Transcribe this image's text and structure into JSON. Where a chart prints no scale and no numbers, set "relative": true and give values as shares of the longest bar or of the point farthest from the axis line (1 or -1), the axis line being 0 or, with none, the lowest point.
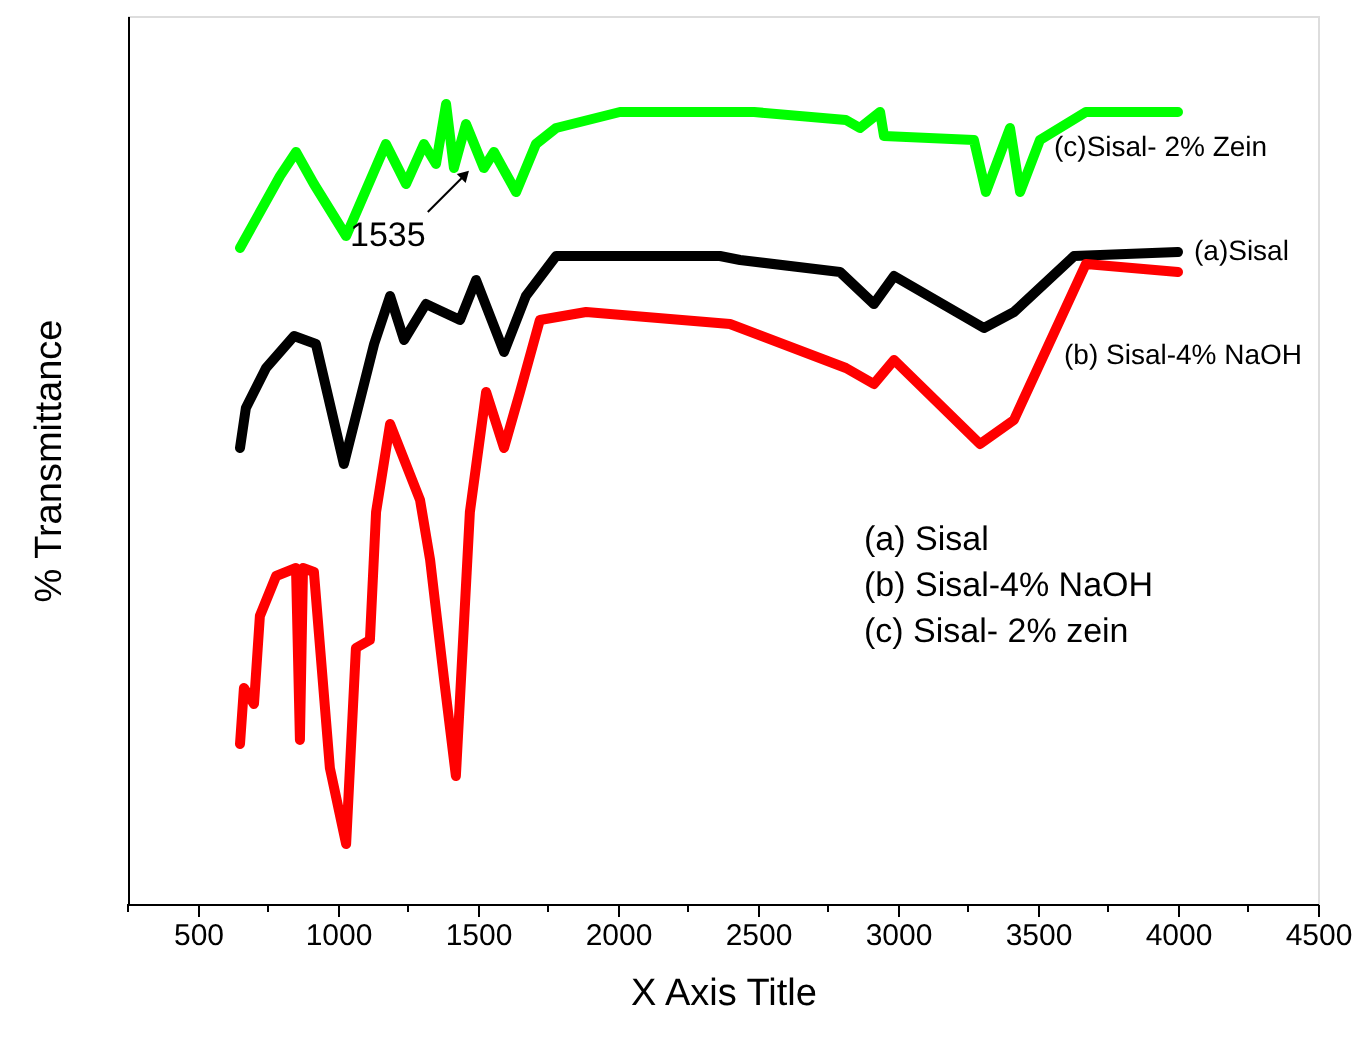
{
  "chart_data": {
    "type": "line",
    "relative": true,
    "xlabel": "X Axis Title",
    "ylabel": "% Transmittance",
    "xlim": [
      250,
      4500
    ],
    "xticks": [
      {
        "value": 250,
        "label": null
      },
      500,
      {
        "value": 750,
        "label": null
      },
      1000,
      {
        "value": 1250,
        "label": null
      },
      1500,
      {
        "value": 1750,
        "label": null
      },
      2000,
      {
        "value": 2250,
        "label": null
      },
      2500,
      {
        "value": 2750,
        "label": null
      },
      3000,
      {
        "value": 3250,
        "label": null
      },
      3500,
      {
        "value": 3750,
        "label": null
      },
      4000,
      {
        "value": 4250,
        "label": null
      },
      4500
    ],
    "grid": false,
    "marker": "none",
    "line_style": "solid",
    "series": [
      {
        "name": "(c)Sisal- 2% Zein",
        "color": "#00ff00",
        "x": [
          650,
          793,
          850,
          914,
          1029,
          1171,
          1243,
          1307,
          1350,
          1386,
          1414,
          1457,
          1521,
          1557,
          1636,
          1707,
          1779,
          2007,
          2486,
          2814,
          2864,
          2936,
          2950,
          3271,
          3314,
          3400,
          3436,
          3507,
          3671,
          4000
        ],
        "values": [
          0.82,
          0.91,
          0.94,
          0.9,
          0.835,
          0.95,
          0.9,
          0.95,
          0.925,
          1,
          0.92,
          0.975,
          0.92,
          0.94,
          0.89,
          0.95,
          0.97,
          0.99,
          0.99,
          0.98,
          0.97,
          0.99,
          0.96,
          0.955,
          0.89,
          0.97,
          0.89,
          0.955,
          0.99,
          0.99
        ]
      },
      {
        "name": "(a)Sisal",
        "color": "#000000",
        "x": [
          650,
          671,
          743,
          843,
          921,
          1021,
          1129,
          1186,
          1236,
          1314,
          1436,
          1493,
          1593,
          1671,
          1779,
          2364,
          2436,
          2793,
          2914,
          2986,
          3307,
          3414,
          3629,
          4000
        ],
        "values": [
          0.57,
          0.62,
          0.67,
          0.71,
          0.7,
          0.55,
          0.7,
          0.76,
          0.705,
          0.75,
          0.73,
          0.78,
          0.69,
          0.76,
          0.81,
          0.81,
          0.805,
          0.79,
          0.75,
          0.785,
          0.72,
          0.74,
          0.81,
          0.815
        ]
      },
      {
        "name": "(b) Sisal-4% NaOH",
        "color": "#ff0000",
        "x": [
          650,
          664,
          700,
          721,
          779,
          850,
          864,
          875,
          914,
          971,
          1029,
          1064,
          1114,
          1136,
          1186,
          1293,
          1329,
          1379,
          1421,
          1471,
          1529,
          1593,
          1650,
          1721,
          1886,
          2400,
          2814,
          2914,
          2986,
          3293,
          3414,
          3671,
          4000
        ],
        "values": [
          0.2,
          0.27,
          0.25,
          0.36,
          0.41,
          0.42,
          0.205,
          0.42,
          0.415,
          0.17,
          0.075,
          0.32,
          0.33,
          0.49,
          0.6,
          0.505,
          0.43,
          0.28,
          0.16,
          0.49,
          0.64,
          0.57,
          0.64,
          0.73,
          0.74,
          0.725,
          0.67,
          0.65,
          0.68,
          0.575,
          0.605,
          0.8,
          0.79
        ]
      }
    ],
    "annotations": [
      {
        "text": "1535",
        "x": 1535,
        "y": 0.93
      },
      "(a) Sisal",
      "(b) Sisal-4% NaOH",
      "(c) Sisal- 2% zein"
    ]
  }
}
